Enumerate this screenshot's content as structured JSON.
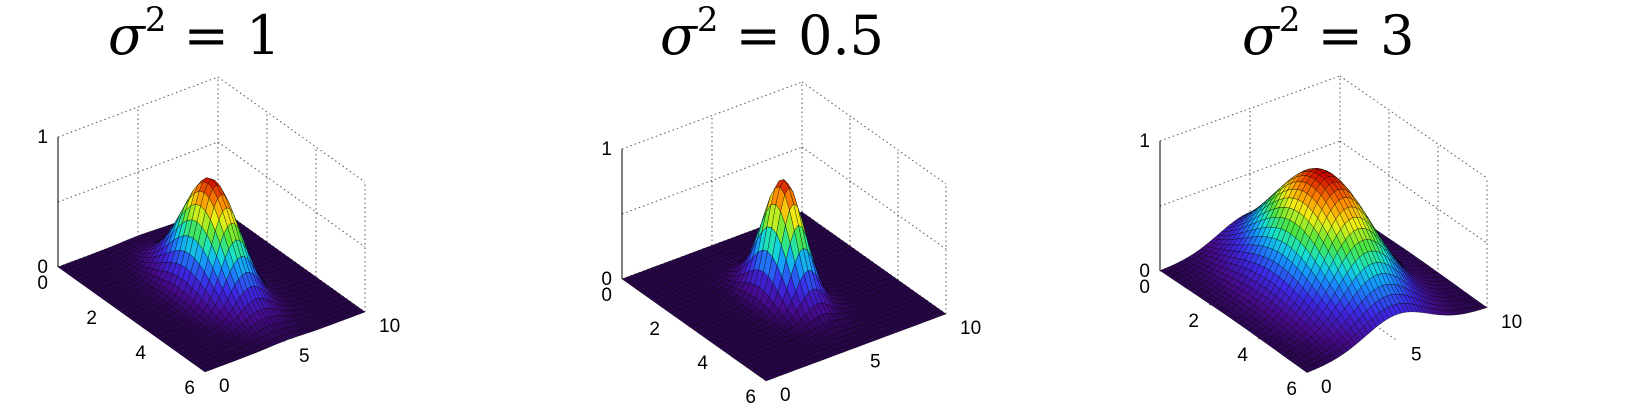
{
  "colors": {
    "low": "#3a0a6a",
    "high": "#d00000",
    "grid": "#555555",
    "mesh": "#000000"
  },
  "colormap": "jet",
  "chart_data": [
    {
      "type": "surface",
      "title": {
        "symbol": "σ",
        "exponent": "2",
        "rest": " = 1"
      },
      "variance": 1,
      "x_range": [
        0,
        10
      ],
      "y_range": [
        0,
        6
      ],
      "z_range": [
        0,
        1
      ],
      "center": [
        5,
        3
      ],
      "peak": 0.85,
      "x_ticks": [
        "0",
        "5",
        "10"
      ],
      "y_ticks": [
        "0",
        "2",
        "4",
        "6"
      ],
      "z_ticks": [
        "0",
        "1"
      ],
      "grid": true
    },
    {
      "type": "surface",
      "title": {
        "symbol": "σ",
        "exponent": "2",
        "rest": " = 0.5"
      },
      "variance": 0.5,
      "x_range": [
        0,
        10
      ],
      "y_range": [
        0,
        6
      ],
      "z_range": [
        0,
        1
      ],
      "center": [
        5,
        3
      ],
      "peak": 0.9,
      "x_ticks": [
        "0",
        "5",
        "10"
      ],
      "y_ticks": [
        "0",
        "2",
        "4",
        "6"
      ],
      "z_ticks": [
        "0",
        "1"
      ],
      "grid": true
    },
    {
      "type": "surface",
      "title": {
        "symbol": "σ",
        "exponent": "2",
        "rest": " = 3"
      },
      "variance": 3,
      "x_range": [
        0,
        10
      ],
      "y_range": [
        0,
        6
      ],
      "z_range": [
        0,
        1
      ],
      "center": [
        5,
        3
      ],
      "peak": 0.9,
      "x_ticks": [
        "0",
        "5",
        "10"
      ],
      "y_ticks": [
        "0",
        "2",
        "4",
        "6"
      ],
      "z_ticks": [
        "0",
        "1"
      ],
      "grid": true
    }
  ]
}
